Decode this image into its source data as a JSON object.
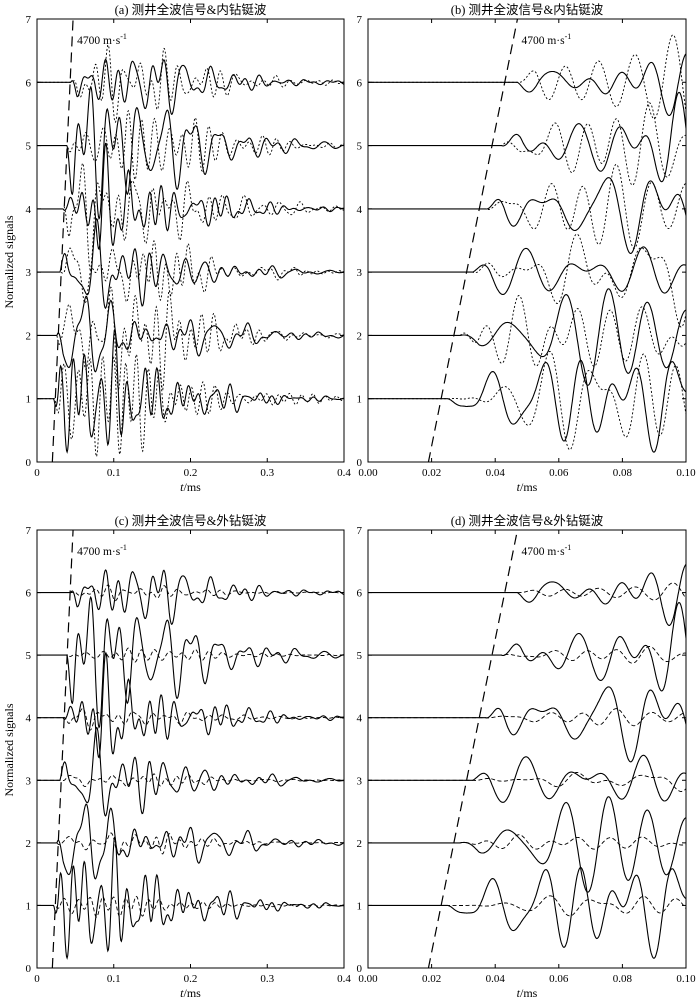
{
  "ylabel_shared": "Normalized signals",
  "chart_data": [
    {
      "type": "line",
      "title": "(a) 测井全波信号&内钻铤波",
      "xlabel": "t/ms",
      "xlim": [
        0,
        0.4
      ],
      "ylim": [
        0,
        7
      ],
      "xticks": [
        0.0,
        0.1,
        0.2,
        0.3,
        0.4
      ],
      "xtick_labels": [
        "0",
        "0.1",
        "0.2",
        "0.3",
        "0.4"
      ],
      "yticks": [
        0,
        1,
        2,
        3,
        4,
        5,
        6,
        7
      ],
      "ytick_labels": [
        "0",
        "1",
        "2",
        "3",
        "4",
        "5",
        "6",
        "7"
      ],
      "traces_baselines": [
        1,
        2,
        3,
        4,
        5,
        6
      ],
      "full_wave_onset_ms": [
        0.022,
        0.026,
        0.03,
        0.034,
        0.039,
        0.044
      ],
      "dashed_trace_style": "dotted",
      "moveout_line": {
        "label": "4700 m·s",
        "superscript": "-1",
        "from": [
          0.02,
          0
        ],
        "to": [
          0.047,
          7
        ]
      }
    },
    {
      "type": "line",
      "title": "(b) 测井全波信号&内钻铤波",
      "xlabel": "t/ms",
      "xlim": [
        0,
        0.1
      ],
      "ylim": [
        0,
        7
      ],
      "xticks": [
        0.0,
        0.02,
        0.04,
        0.06,
        0.08,
        0.1
      ],
      "xtick_labels": [
        "0.00",
        "0.02",
        "0.04",
        "0.06",
        "0.08",
        "0.10"
      ],
      "yticks": [
        0,
        1,
        2,
        3,
        4,
        5,
        6,
        7
      ],
      "ytick_labels": [
        "0",
        "1",
        "2",
        "3",
        "4",
        "5",
        "6",
        "7"
      ],
      "traces_baselines": [
        1,
        2,
        3,
        4,
        5,
        6
      ],
      "full_wave_onset_ms": [
        0.025,
        0.029,
        0.033,
        0.037,
        0.042,
        0.047
      ],
      "dashed_trace_style": "dotted",
      "moveout_line": {
        "label": "4700 m·s",
        "superscript": "-1",
        "from": [
          0.019,
          0
        ],
        "to": [
          0.047,
          7
        ]
      }
    },
    {
      "type": "line",
      "title": "(c) 测井全波信号&外钻铤波",
      "xlabel": "t/ms",
      "xlim": [
        0,
        0.4
      ],
      "ylim": [
        0,
        7
      ],
      "xticks": [
        0.0,
        0.1,
        0.2,
        0.3,
        0.4
      ],
      "xtick_labels": [
        "0",
        "0.1",
        "0.2",
        "0.3",
        "0.4"
      ],
      "yticks": [
        0,
        1,
        2,
        3,
        4,
        5,
        6,
        7
      ],
      "ytick_labels": [
        "0",
        "1",
        "2",
        "3",
        "4",
        "5",
        "6",
        "7"
      ],
      "traces_baselines": [
        1,
        2,
        3,
        4,
        5,
        6
      ],
      "full_wave_onset_ms": [
        0.022,
        0.026,
        0.03,
        0.034,
        0.039,
        0.044
      ],
      "dashed_trace_style": "dashed",
      "moveout_line": {
        "label": "4700 m·s",
        "superscript": "-1",
        "from": [
          0.02,
          0
        ],
        "to": [
          0.047,
          7
        ]
      }
    },
    {
      "type": "line",
      "title": "(d) 测井全波信号&外钻铤波",
      "xlabel": "t/ms",
      "xlim": [
        0,
        0.1
      ],
      "ylim": [
        0,
        7
      ],
      "xticks": [
        0.0,
        0.02,
        0.04,
        0.06,
        0.08,
        0.1
      ],
      "xtick_labels": [
        "0.00",
        "0.02",
        "0.04",
        "0.06",
        "0.08",
        "0.10"
      ],
      "yticks": [
        0,
        1,
        2,
        3,
        4,
        5,
        6,
        7
      ],
      "ytick_labels": [
        "0",
        "1",
        "2",
        "3",
        "4",
        "5",
        "6",
        "7"
      ],
      "traces_baselines": [
        1,
        2,
        3,
        4,
        5,
        6
      ],
      "full_wave_onset_ms": [
        0.025,
        0.029,
        0.033,
        0.037,
        0.042,
        0.047
      ],
      "dashed_trace_style": "dashed",
      "moveout_line": {
        "label": "4700 m·s",
        "superscript": "-1",
        "from": [
          0.019,
          0
        ],
        "to": [
          0.047,
          7
        ]
      }
    }
  ]
}
